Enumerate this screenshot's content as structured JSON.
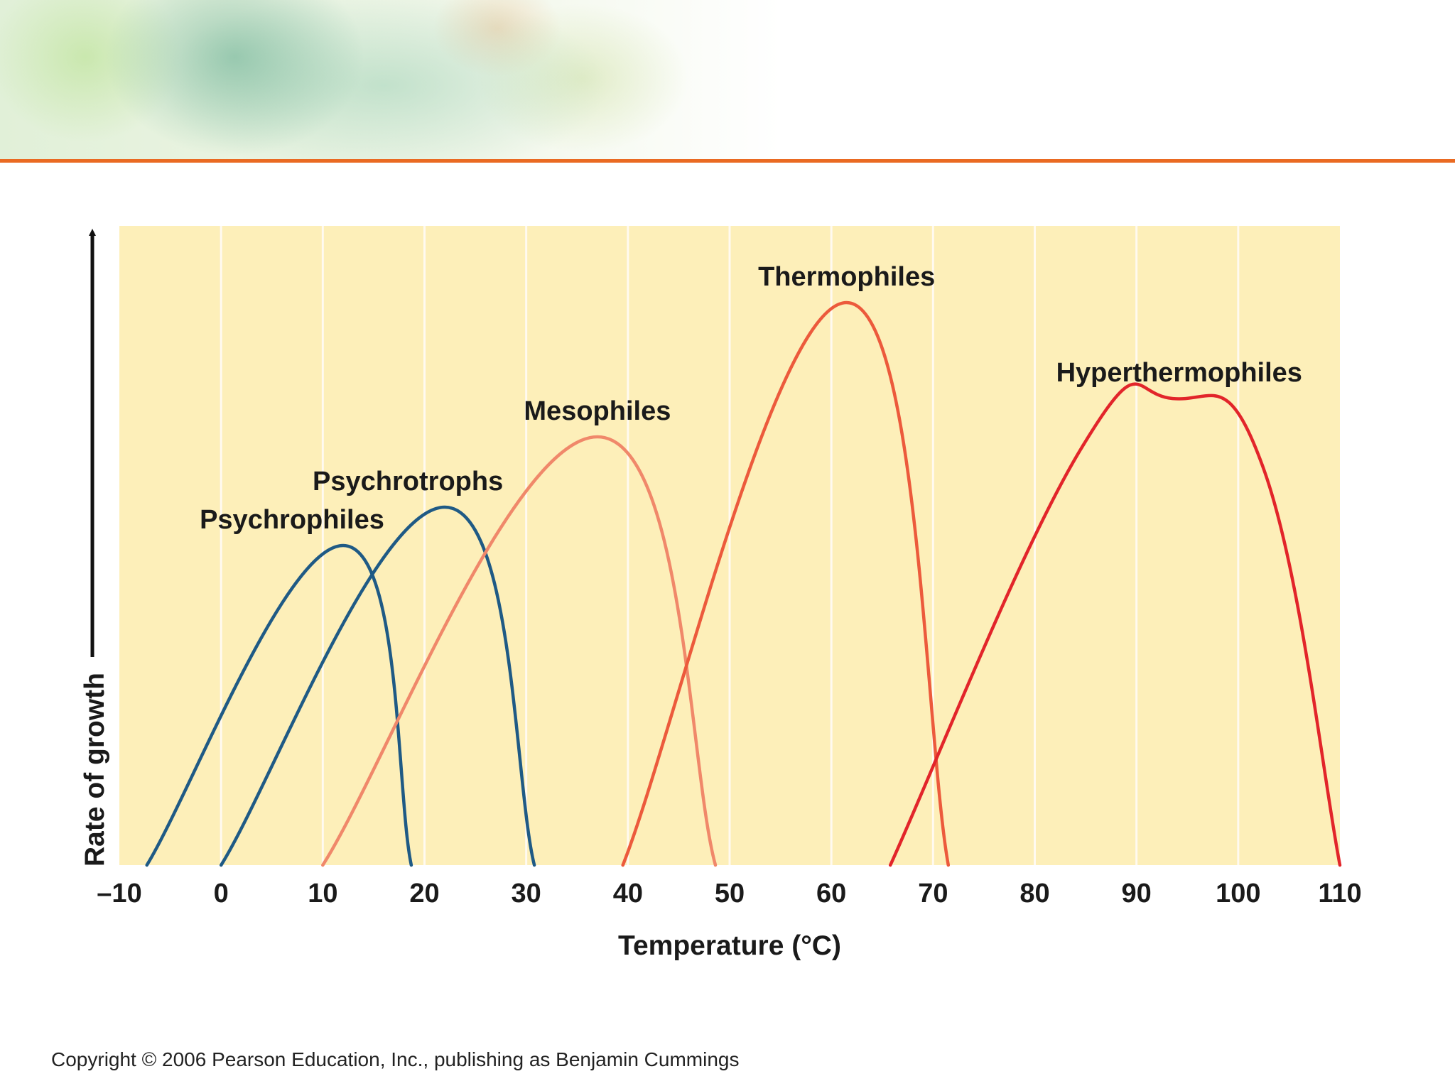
{
  "copyright": "Copyright © 2006 Pearson Education, Inc., publishing as Benjamin Cummings",
  "colors": {
    "banner_rule": "#ea6a22",
    "plot_background": "#fdefb9",
    "grid": "#fffaf0",
    "psychro": "#1f5a85",
    "meso": "#f0886a",
    "thermo": "#ec5a3c",
    "hyper": "#e2252a"
  },
  "chart_data": {
    "type": "line",
    "xlabel": "Temperature (°C)",
    "ylabel": "Rate of growth",
    "xlim": [
      -10,
      110
    ],
    "ylim": [
      0,
      1
    ],
    "x_ticks": [
      -10,
      0,
      10,
      20,
      30,
      40,
      50,
      60,
      70,
      80,
      90,
      100,
      110
    ],
    "x_tick_labels": [
      "–10",
      "0",
      "10",
      "20",
      "30",
      "40",
      "50",
      "60",
      "70",
      "80",
      "90",
      "100",
      "110"
    ],
    "grid": "vertical",
    "y_axis_style": "arrow, no ticks",
    "series": [
      {
        "name": "Psychrophiles",
        "color": "#1f5a85",
        "points": [
          [
            -7.3,
            0
          ],
          [
            12,
            0.5
          ],
          [
            18.7,
            0
          ]
        ]
      },
      {
        "name": "Psychrotrophs",
        "color": "#1f5a85",
        "points": [
          [
            0,
            0
          ],
          [
            22,
            0.56
          ],
          [
            30.8,
            0
          ]
        ]
      },
      {
        "name": "Mesophiles",
        "color": "#f0886a",
        "points": [
          [
            10,
            0
          ],
          [
            37,
            0.67
          ],
          [
            48.6,
            0
          ]
        ]
      },
      {
        "name": "Thermophiles",
        "color": "#ec5a3c",
        "points": [
          [
            39.5,
            0
          ],
          [
            61.5,
            0.88
          ],
          [
            71.5,
            0
          ]
        ]
      },
      {
        "name": "Hyperthermophiles",
        "color": "#e2252a",
        "points": [
          [
            65.8,
            0
          ],
          [
            84.5,
            0.65
          ],
          [
            93.5,
            0.73
          ],
          [
            102.5,
            0.62
          ],
          [
            110,
            0
          ]
        ]
      }
    ]
  }
}
